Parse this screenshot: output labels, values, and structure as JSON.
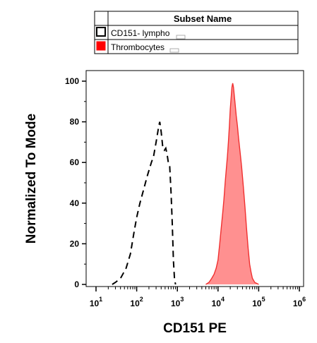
{
  "chart_data": {
    "type": "area",
    "xlabel": "CD151 PE",
    "ylabel": "Normalized To Mode",
    "x_scale": "log",
    "xlim": [
      10,
      1000000
    ],
    "ylim": [
      0,
      100
    ],
    "x_tick_labels": [
      {
        "value": 10,
        "base": "10",
        "exp": "1"
      },
      {
        "value": 100,
        "base": "10",
        "exp": "2"
      },
      {
        "value": 1000,
        "base": "10",
        "exp": "3"
      },
      {
        "value": 10000,
        "base": "10",
        "exp": "4"
      },
      {
        "value": 100000,
        "base": "10",
        "exp": "5"
      },
      {
        "value": 1000000,
        "base": "10",
        "exp": "6"
      }
    ],
    "y_ticks": [
      0,
      20,
      40,
      60,
      80,
      100
    ],
    "grid": false,
    "legend": {
      "position": "top",
      "header": "Subset Name",
      "entries": [
        {
          "label": "CD151- lympho",
          "style": "dashed",
          "swatch_color": "#ffffff",
          "swatch_border": "#000000"
        },
        {
          "label": "Thrombocytes",
          "style": "filled",
          "swatch_color": "#ff0000",
          "swatch_border": "#ff0000"
        }
      ]
    },
    "series": [
      {
        "name": "CD151- lympho",
        "style": "dashed",
        "color": "#000000",
        "x": [
          25,
          30,
          40,
          55,
          70,
          85,
          100,
          120,
          150,
          180,
          200,
          230,
          260,
          300,
          330,
          350,
          370,
          400,
          440,
          480,
          520,
          560,
          600,
          650,
          700,
          750,
          800,
          850,
          900
        ],
        "y": [
          0,
          1,
          3,
          8,
          15,
          25,
          33,
          40,
          47,
          53,
          56,
          60,
          63,
          70,
          75,
          78,
          80,
          75,
          67,
          66,
          67,
          64,
          60,
          58,
          45,
          30,
          12,
          3,
          0
        ]
      },
      {
        "name": "Thrombocytes",
        "style": "filled",
        "color": "#f03030",
        "fill": "#ff9090",
        "x": [
          5000,
          6000,
          7000,
          8000,
          9000,
          10000,
          11000,
          12000,
          13000,
          14000,
          15000,
          16000,
          17000,
          18000,
          19000,
          20000,
          21000,
          22000,
          23000,
          24000,
          26000,
          28000,
          30000,
          32000,
          35000,
          38000,
          42000,
          46000,
          50000,
          55000,
          60000,
          65000,
          70000,
          80000,
          90000,
          100000
        ],
        "y": [
          0,
          1,
          3,
          5,
          8,
          12,
          20,
          28,
          35,
          42,
          50,
          57,
          63,
          70,
          78,
          86,
          92,
          97,
          99,
          97,
          90,
          83,
          78,
          72,
          65,
          58,
          48,
          38,
          28,
          18,
          10,
          6,
          3,
          1,
          0.5,
          0
        ]
      }
    ]
  }
}
